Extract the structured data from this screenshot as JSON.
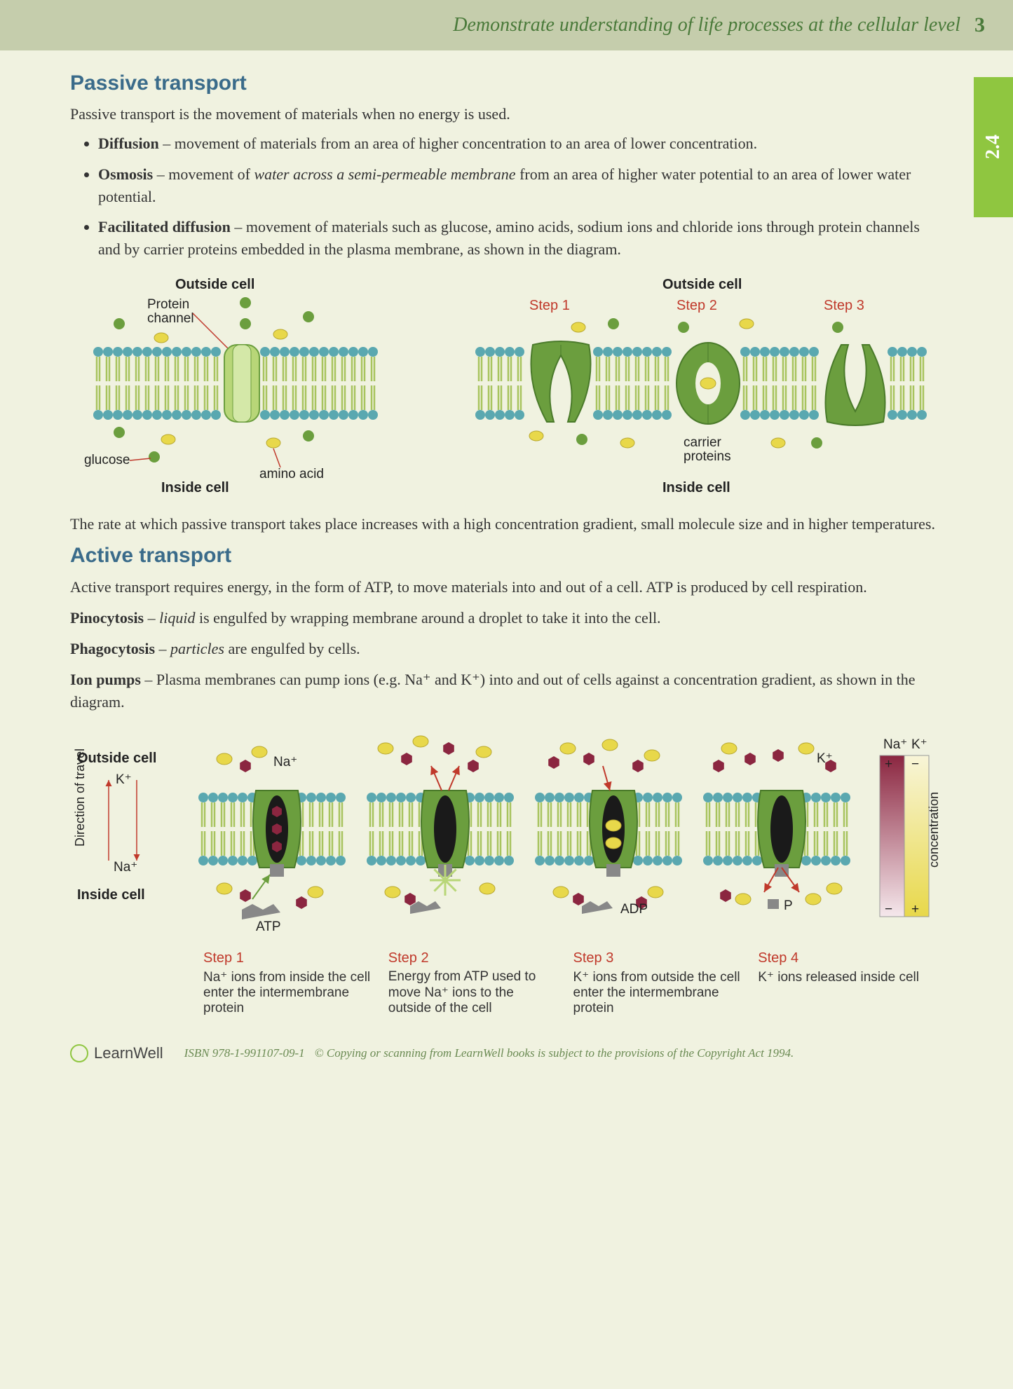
{
  "header": {
    "title": "Demonstrate understanding of life processes at the cellular level",
    "pagenum": "3"
  },
  "sidetab": "2.4",
  "colors": {
    "page_bg": "#f0f2e0",
    "header_bg": "#c5cdac",
    "header_text": "#4a7a3a",
    "tab_bg": "#8fc640",
    "heading": "#3a6b8a",
    "step_red": "#c0392b",
    "membrane_head": "#5aa8b0",
    "membrane_tail": "#a8c45e",
    "protein_green": "#6b9e3e",
    "protein_dark": "#4a7a2a",
    "glucose_green": "#6b9e3e",
    "amino_yellow": "#e8d84a",
    "na_red": "#8b2640",
    "k_yellow": "#e8d84a",
    "atp_gray": "#888"
  },
  "passive": {
    "heading": "Passive transport",
    "intro": "Passive transport is the movement of materials when no energy is used.",
    "items": [
      {
        "term": "Diffusion",
        "rest": " – movement of materials from an area of higher concentration to an area of lower concentration."
      },
      {
        "term": "Osmosis",
        "rest_pre": " – movement of ",
        "ital": "water across a semi-permeable membrane",
        "rest_post": " from an area of higher water potential to an area of lower water potential."
      },
      {
        "term": "Facilitated diffusion",
        "rest": " – movement of materials such as glucose, amino acids, sodium ions and chloride ions through protein channels and by carrier proteins embedded in the plasma membrane, as shown in the diagram."
      }
    ],
    "diagram1": {
      "outside": "Outside cell",
      "inside": "Inside cell",
      "protein_channel": "Protein channel",
      "glucose": "glucose",
      "amino": "amino acid"
    },
    "diagram2": {
      "outside": "Outside cell",
      "inside": "Inside cell",
      "steps": [
        "Step 1",
        "Step 2",
        "Step 3"
      ],
      "carrier": "carrier proteins"
    },
    "rate_text": "The rate at which passive transport takes place increases with a high concentration gradient, small molecule size and in higher temperatures."
  },
  "active": {
    "heading": "Active transport",
    "intro": "Active transport requires energy, in the form of ATP, to move materials into and out of a cell. ATP is produced by cell respiration.",
    "pino_term": "Pinocytosis",
    "pino_rest_pre": " – ",
    "pino_ital": "liquid",
    "pino_rest_post": " is engulfed by wrapping membrane around a droplet to take it into the cell.",
    "phago_term": "Phagocytosis",
    "phago_rest_pre": " – ",
    "phago_ital": "particles",
    "phago_rest_post": " are engulfed by cells.",
    "ion_term": "Ion pumps",
    "ion_rest": " – Plasma membranes can pump ions (e.g. Na⁺ and K⁺) into and out of cells against a concentration gradient, as shown in the diagram.",
    "diagram": {
      "outside": "Outside cell",
      "inside": "Inside cell",
      "direction": "Direction of travel",
      "k_label": "K⁺",
      "na_label": "Na⁺",
      "atp": "ATP",
      "adp": "ADP",
      "p": "P",
      "na_top": "Na⁺",
      "k_top": "K⁺",
      "legend_na": "Na⁺",
      "legend_k": "K⁺",
      "legend_conc": "concentration",
      "steps": [
        {
          "title": "Step 1",
          "text": "Na⁺ ions from inside the cell enter the intermembrane protein"
        },
        {
          "title": "Step 2",
          "text": "Energy from ATP used to move Na⁺ ions to the outside of the cell"
        },
        {
          "title": "Step 3",
          "text": "K⁺ ions from outside the cell enter the intermembrane protein"
        },
        {
          "title": "Step 4",
          "text": "K⁺ ions released inside cell"
        }
      ]
    }
  },
  "footer": {
    "brand": "LearnWell",
    "isbn": "ISBN 978-1-991107-09-1",
    "copyright": "© Copying or scanning from LearnWell books is subject to the provisions of the Copyright Act 1994."
  }
}
